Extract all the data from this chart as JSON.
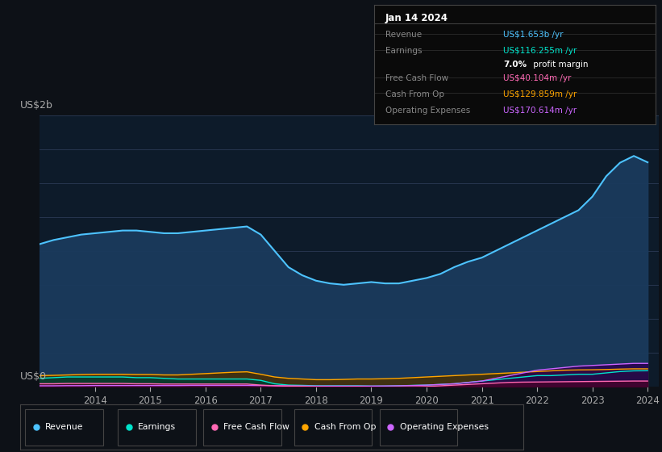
{
  "bg_color": "#0d1117",
  "plot_bg_color": "#0d1b2a",
  "ylabel_top": "US$2b",
  "ylabel_bottom": "US$0",
  "info_box": {
    "date": "Jan 14 2024",
    "rows": [
      {
        "label": "Revenue",
        "value": "US$1.653b /yr",
        "color": "#4dc3ff"
      },
      {
        "label": "Earnings",
        "value": "US$116.255m /yr",
        "color": "#00e5cc"
      },
      {
        "label": "",
        "value": "7.0% profit margin",
        "color": "#ffffff"
      },
      {
        "label": "Free Cash Flow",
        "value": "US$40.104m /yr",
        "color": "#ff69b4"
      },
      {
        "label": "Cash From Op",
        "value": "US$129.859m /yr",
        "color": "#ffa500"
      },
      {
        "label": "Operating Expenses",
        "value": "US$170.614m /yr",
        "color": "#cc66ff"
      }
    ]
  },
  "legend": [
    {
      "label": "Revenue",
      "color": "#4dc3ff"
    },
    {
      "label": "Earnings",
      "color": "#00e5cc"
    },
    {
      "label": "Free Cash Flow",
      "color": "#ff69b4"
    },
    {
      "label": "Cash From Op",
      "color": "#ffa500"
    },
    {
      "label": "Operating Expenses",
      "color": "#cc66ff"
    }
  ],
  "x_years": [
    2013.0,
    2013.25,
    2013.5,
    2013.75,
    2014.0,
    2014.25,
    2014.5,
    2014.75,
    2015.0,
    2015.25,
    2015.5,
    2015.75,
    2016.0,
    2016.25,
    2016.5,
    2016.75,
    2017.0,
    2017.25,
    2017.5,
    2017.75,
    2018.0,
    2018.25,
    2018.5,
    2018.75,
    2019.0,
    2019.25,
    2019.5,
    2019.75,
    2020.0,
    2020.25,
    2020.5,
    2020.75,
    2021.0,
    2021.25,
    2021.5,
    2021.75,
    2022.0,
    2022.25,
    2022.5,
    2022.75,
    2023.0,
    2023.25,
    2023.5,
    2023.75,
    2024.0
  ],
  "revenue": [
    1.05,
    1.08,
    1.1,
    1.12,
    1.13,
    1.14,
    1.15,
    1.15,
    1.14,
    1.13,
    1.13,
    1.14,
    1.15,
    1.16,
    1.17,
    1.18,
    1.12,
    1.0,
    0.88,
    0.82,
    0.78,
    0.76,
    0.75,
    0.76,
    0.77,
    0.76,
    0.76,
    0.78,
    0.8,
    0.83,
    0.88,
    0.92,
    0.95,
    1.0,
    1.05,
    1.1,
    1.15,
    1.2,
    1.25,
    1.3,
    1.4,
    1.55,
    1.65,
    1.7,
    1.653
  ],
  "earnings": [
    0.06,
    0.065,
    0.07,
    0.07,
    0.07,
    0.07,
    0.07,
    0.065,
    0.065,
    0.06,
    0.055,
    0.055,
    0.055,
    0.055,
    0.055,
    0.055,
    0.045,
    0.02,
    0.01,
    0.008,
    0.005,
    0.005,
    0.005,
    0.005,
    0.003,
    0.003,
    0.005,
    0.008,
    0.01,
    0.015,
    0.02,
    0.03,
    0.04,
    0.05,
    0.06,
    0.07,
    0.08,
    0.08,
    0.085,
    0.09,
    0.09,
    0.1,
    0.11,
    0.115,
    0.116
  ],
  "free_cash_flow": [
    0.02,
    0.02,
    0.022,
    0.022,
    0.022,
    0.022,
    0.022,
    0.02,
    0.02,
    0.018,
    0.018,
    0.018,
    0.018,
    0.018,
    0.018,
    0.018,
    0.01,
    0.005,
    0.002,
    0.001,
    -0.002,
    -0.003,
    -0.003,
    -0.002,
    -0.005,
    -0.005,
    -0.003,
    -0.002,
    0.0,
    0.005,
    0.01,
    0.015,
    0.02,
    0.025,
    0.03,
    0.032,
    0.033,
    0.034,
    0.035,
    0.036,
    0.037,
    0.038,
    0.039,
    0.04,
    0.04
  ],
  "cash_from_op": [
    0.08,
    0.082,
    0.085,
    0.088,
    0.09,
    0.09,
    0.09,
    0.088,
    0.088,
    0.085,
    0.085,
    0.09,
    0.095,
    0.1,
    0.105,
    0.108,
    0.09,
    0.07,
    0.06,
    0.055,
    0.05,
    0.05,
    0.052,
    0.055,
    0.055,
    0.057,
    0.06,
    0.065,
    0.07,
    0.075,
    0.08,
    0.085,
    0.09,
    0.095,
    0.1,
    0.105,
    0.11,
    0.115,
    0.12,
    0.122,
    0.123,
    0.125,
    0.128,
    0.13,
    0.13
  ],
  "operating_expenses": [
    0.005,
    0.005,
    0.006,
    0.006,
    0.007,
    0.007,
    0.007,
    0.007,
    0.007,
    0.007,
    0.007,
    0.008,
    0.008,
    0.008,
    0.008,
    0.008,
    0.007,
    0.006,
    0.005,
    0.004,
    0.003,
    0.003,
    0.003,
    0.003,
    0.003,
    0.004,
    0.005,
    0.007,
    0.01,
    0.015,
    0.02,
    0.03,
    0.04,
    0.06,
    0.08,
    0.1,
    0.12,
    0.13,
    0.14,
    0.15,
    0.155,
    0.16,
    0.165,
    0.17,
    0.17
  ],
  "xticks": [
    2014,
    2015,
    2016,
    2017,
    2018,
    2019,
    2020,
    2021,
    2022,
    2023,
    2024
  ],
  "ylim": [
    0,
    2.0
  ],
  "xlim": [
    2013.0,
    2024.2
  ]
}
